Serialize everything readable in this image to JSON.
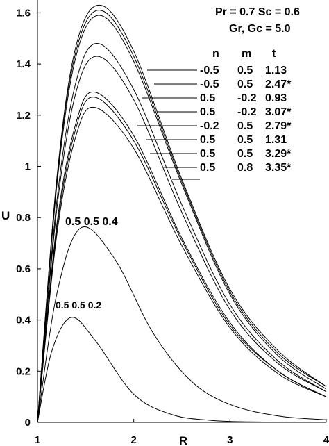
{
  "chart_data": {
    "type": "line",
    "xlabel": "R",
    "ylabel": "U",
    "xlim": [
      1,
      4
    ],
    "ylim": [
      0,
      1.65
    ],
    "x_ticks": [
      "1",
      "2",
      "3",
      "4"
    ],
    "y_ticks": [
      "0",
      "0.2",
      "0.4",
      "0.6",
      "0.8",
      "1",
      "1.2",
      "1.4",
      "1.6"
    ],
    "params_line1": "Pr = 0.7 Sc = 0.6",
    "params_line2": "Gr, Gc = 5.0",
    "table_header": [
      "n",
      "m",
      "t"
    ],
    "table_rows": [
      [
        "-0.5",
        "0.5",
        "1.13"
      ],
      [
        "-0.5",
        "0.5",
        "2.47*"
      ],
      [
        "0.5",
        "-0.2",
        "0.93"
      ],
      [
        "0.5",
        "-0.2",
        "3.07*"
      ],
      [
        "-0.2",
        "0.5",
        "2.79*"
      ],
      [
        "0.5",
        "0.5",
        "1.31"
      ],
      [
        "0.5",
        "0.5",
        "3.29*"
      ],
      [
        "0.5",
        "0.8",
        "3.35*"
      ]
    ],
    "curve_label_1": "0.5  0.5  0.4",
    "curve_label_2": "0.5 0.5  0.2",
    "series": [
      {
        "peak_x": 1.65,
        "peak_y": 1.63,
        "x": [
          1,
          1.2,
          1.4,
          1.65,
          2,
          2.5,
          3,
          3.5,
          4
        ],
        "y": [
          0,
          0.95,
          1.47,
          1.63,
          1.45,
          0.95,
          0.52,
          0.28,
          0.14
        ]
      },
      {
        "peak_x": 1.65,
        "peak_y": 1.61,
        "x": [
          1,
          1.2,
          1.4,
          1.65,
          2,
          2.5,
          3,
          3.5,
          4
        ],
        "y": [
          0,
          0.94,
          1.45,
          1.61,
          1.43,
          0.94,
          0.51,
          0.27,
          0.14
        ]
      },
      {
        "peak_x": 1.65,
        "peak_y": 1.59,
        "x": [
          1,
          1.2,
          1.4,
          1.65,
          2,
          2.5,
          3,
          3.5,
          4
        ],
        "y": [
          0,
          0.92,
          1.43,
          1.59,
          1.41,
          0.93,
          0.5,
          0.26,
          0.13
        ]
      },
      {
        "peak_x": 1.63,
        "peak_y": 1.48,
        "x": [
          1,
          1.2,
          1.4,
          1.63,
          2,
          2.5,
          3,
          3.5,
          4
        ],
        "y": [
          0,
          0.86,
          1.33,
          1.48,
          1.3,
          0.85,
          0.46,
          0.24,
          0.12
        ]
      },
      {
        "peak_x": 1.63,
        "peak_y": 1.43,
        "x": [
          1,
          1.2,
          1.4,
          1.63,
          2,
          2.5,
          3,
          3.5,
          4
        ],
        "y": [
          0,
          0.83,
          1.29,
          1.43,
          1.26,
          0.82,
          0.44,
          0.23,
          0.12
        ]
      },
      {
        "peak_x": 1.6,
        "peak_y": 1.29,
        "x": [
          1,
          1.2,
          1.4,
          1.6,
          2,
          2.5,
          3,
          3.5,
          4
        ],
        "y": [
          0,
          0.77,
          1.17,
          1.29,
          1.12,
          0.72,
          0.39,
          0.2,
          0.1
        ]
      },
      {
        "peak_x": 1.6,
        "peak_y": 1.27,
        "x": [
          1,
          1.2,
          1.4,
          1.6,
          2,
          2.5,
          3,
          3.5,
          4
        ],
        "y": [
          0,
          0.75,
          1.15,
          1.27,
          1.1,
          0.71,
          0.38,
          0.2,
          0.1
        ]
      },
      {
        "peak_x": 1.6,
        "peak_y": 1.23,
        "x": [
          1,
          1.2,
          1.4,
          1.6,
          2,
          2.5,
          3,
          3.5,
          4
        ],
        "y": [
          0,
          0.73,
          1.12,
          1.23,
          1.07,
          0.69,
          0.37,
          0.19,
          0.1
        ]
      },
      {
        "peak_x": 1.45,
        "peak_y": 0.76,
        "x": [
          1,
          1.2,
          1.45,
          1.8,
          2.2,
          2.6,
          3,
          3.5,
          4
        ],
        "y": [
          0,
          0.5,
          0.76,
          0.64,
          0.35,
          0.16,
          0.07,
          0.025,
          0.01
        ]
      },
      {
        "peak_x": 1.35,
        "peak_y": 0.41,
        "x": [
          1,
          1.15,
          1.35,
          1.6,
          2,
          2.4,
          2.8,
          3.2,
          4
        ],
        "y": [
          0,
          0.28,
          0.41,
          0.32,
          0.11,
          0.03,
          0.008,
          0.002,
          0
        ]
      }
    ]
  }
}
